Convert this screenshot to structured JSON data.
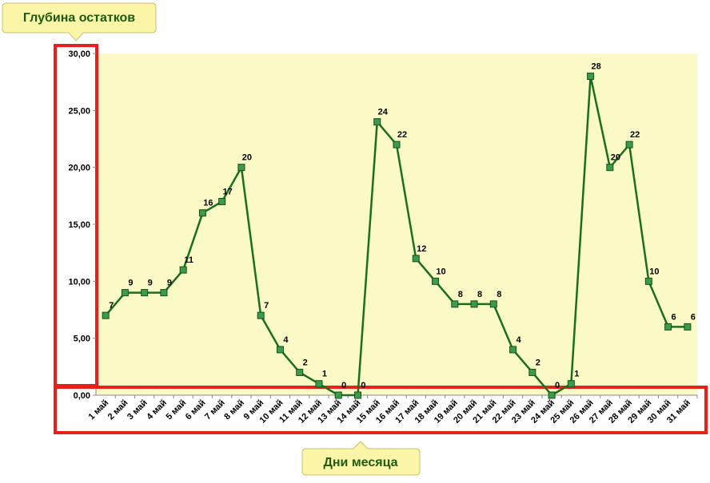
{
  "chart_data": {
    "type": "line",
    "categories": [
      "1 май",
      "2 май",
      "3 май",
      "4 май",
      "5 май",
      "6 май",
      "7 май",
      "8 май",
      "9 май",
      "10 май",
      "11 май",
      "12 май",
      "13 май",
      "14 май",
      "15 май",
      "16 май",
      "17 май",
      "18 май",
      "19 май",
      "20 май",
      "21 май",
      "22 май",
      "23 май",
      "24 май",
      "25 май",
      "26 май",
      "27 май",
      "28 май",
      "29 май",
      "30 май",
      "31 май"
    ],
    "series": [
      {
        "color": "#1b6e1b",
        "values": [
          7,
          9,
          9,
          9,
          11,
          16,
          17,
          20,
          7,
          4,
          2,
          1,
          0,
          0,
          24,
          22,
          12,
          10,
          8,
          8,
          8,
          4,
          2,
          0,
          1,
          28,
          20,
          22,
          10,
          6,
          6
        ]
      }
    ],
    "ylim": [
      0,
      30
    ],
    "yticks": [
      {
        "value": 0,
        "label": "0,00"
      },
      {
        "value": 5,
        "label": "5,00"
      },
      {
        "value": 10,
        "label": "10,00"
      },
      {
        "value": 15,
        "label": "15,00"
      },
      {
        "value": 20,
        "label": "20,00"
      },
      {
        "value": 25,
        "label": "25,00"
      },
      {
        "value": 30,
        "label": "30,00"
      }
    ],
    "annotations": [
      "Глубина остатков",
      "Дни месяца"
    ]
  }
}
